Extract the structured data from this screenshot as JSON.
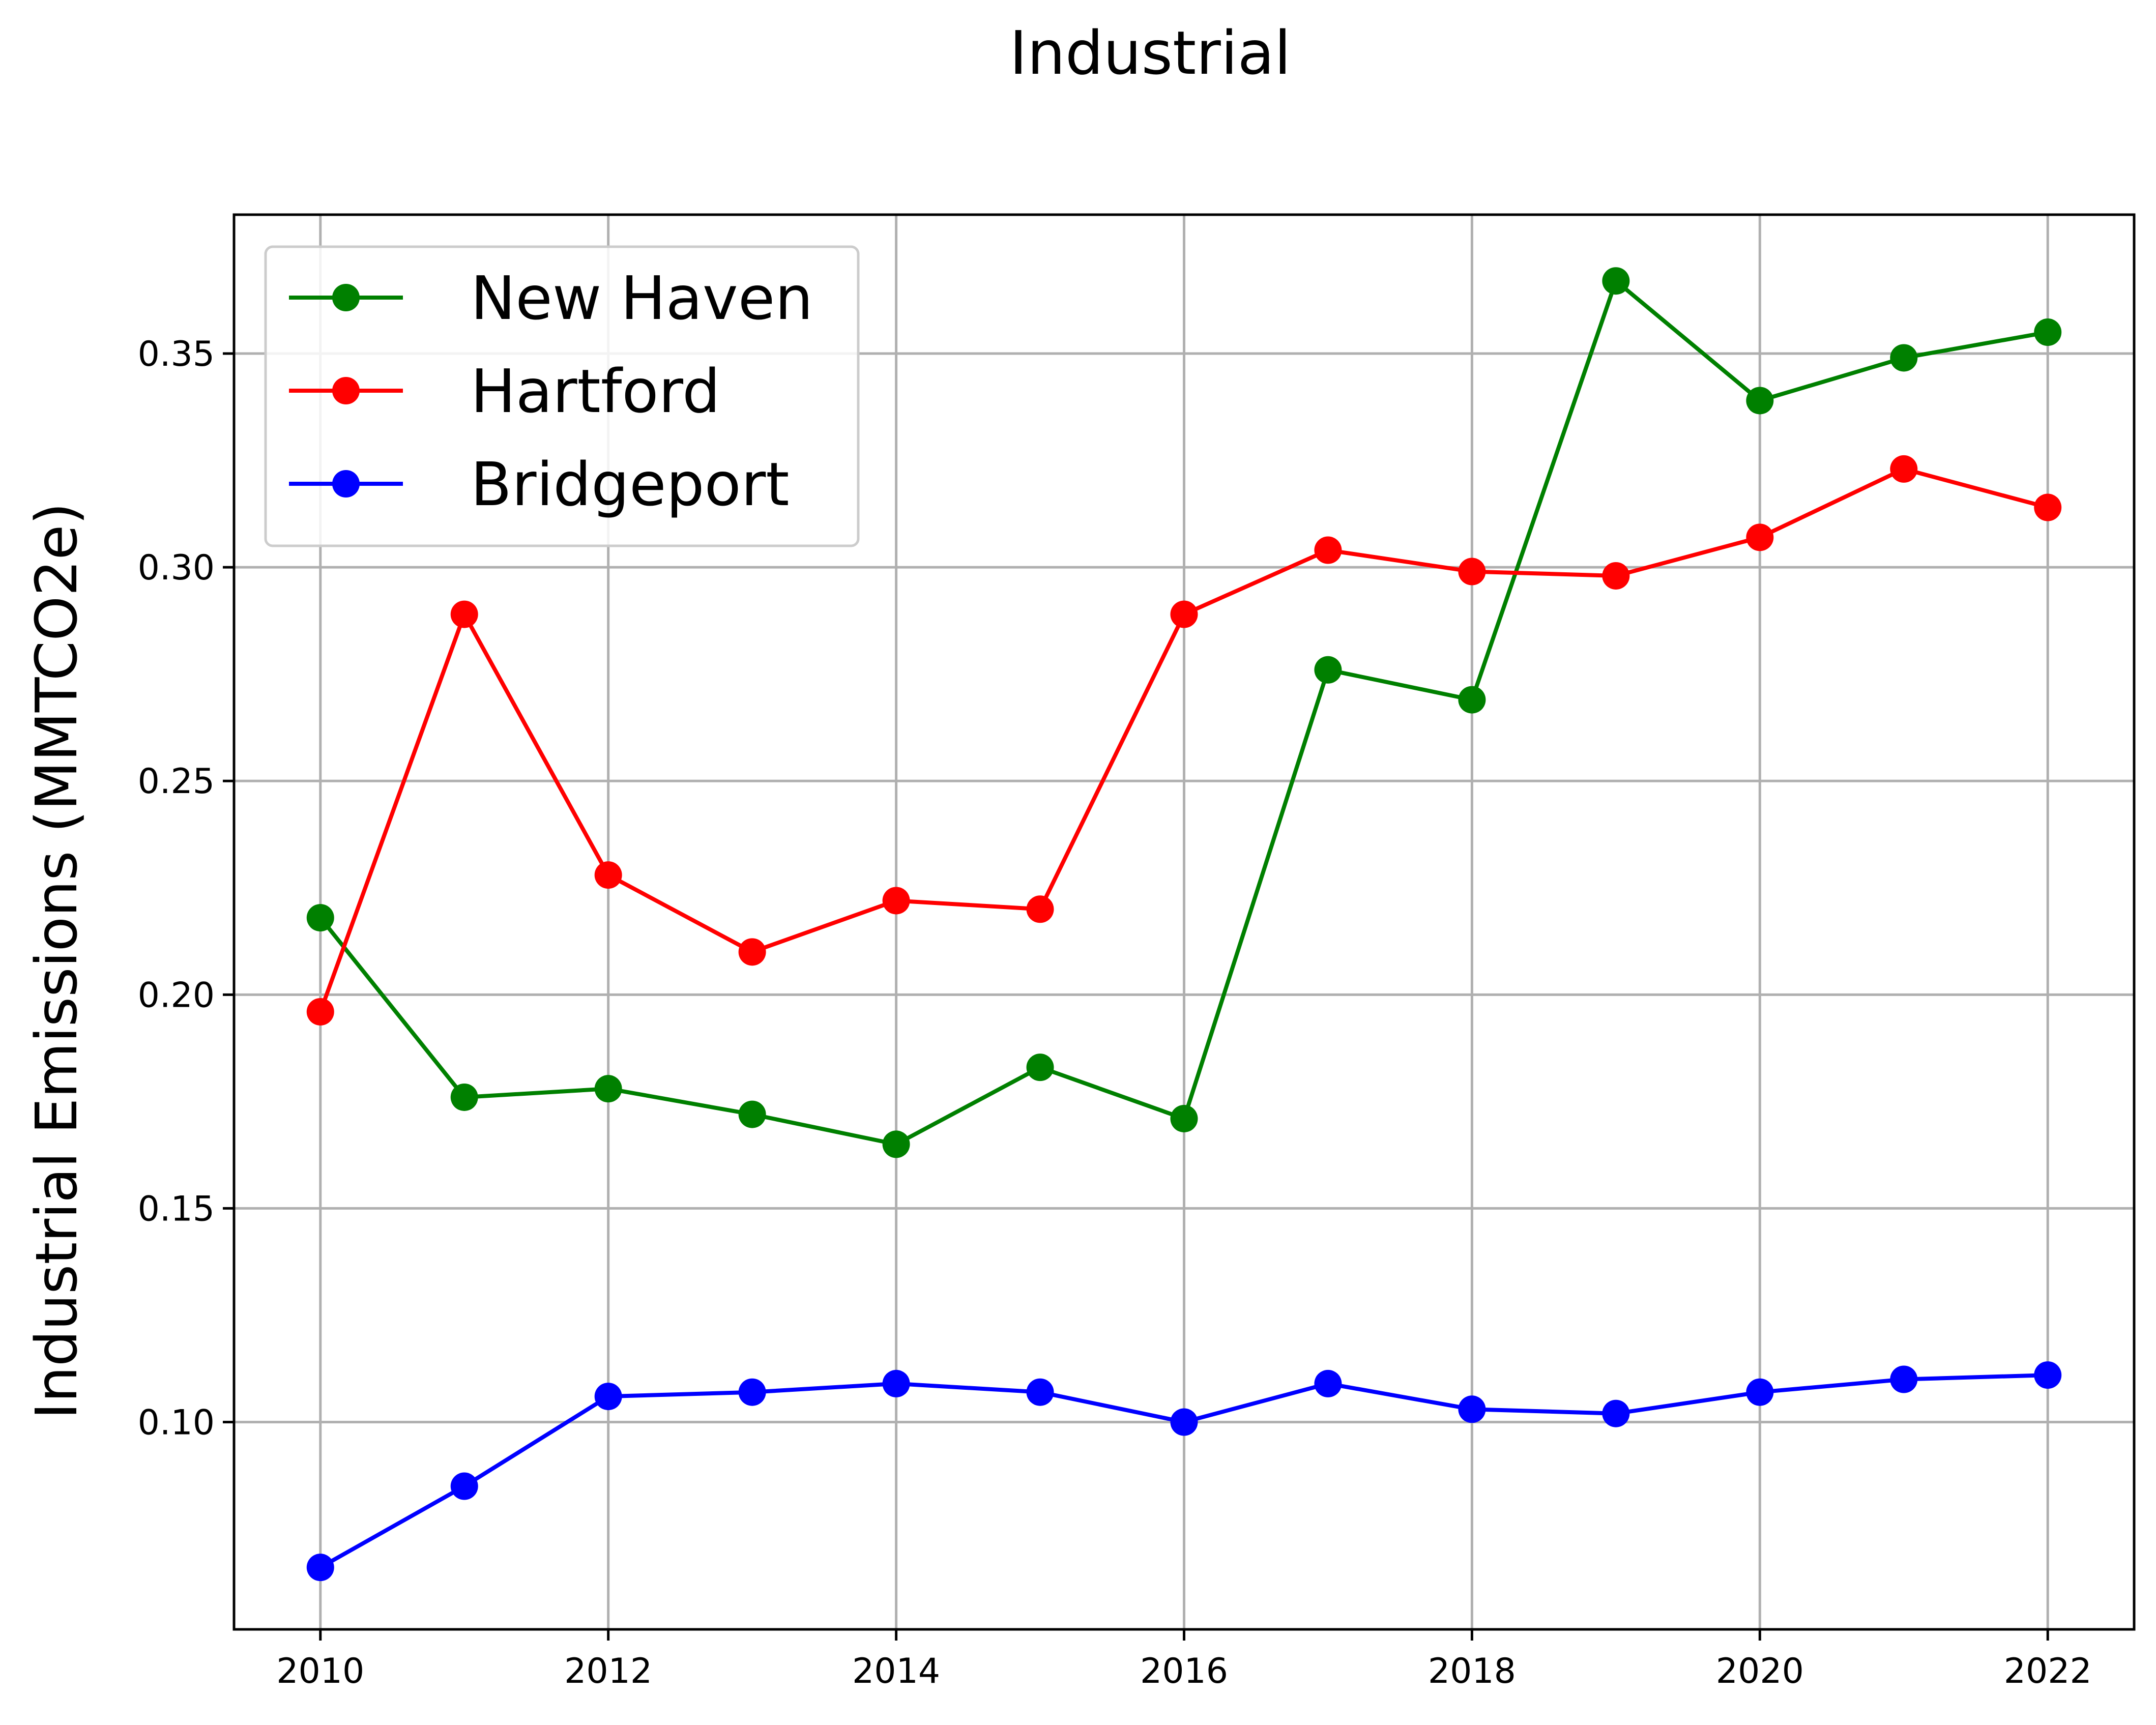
{
  "chart_data": {
    "type": "line",
    "title": "Industrial",
    "xlabel": "",
    "ylabel": "Industrial Emissions (MMTCO2e)",
    "x": [
      2010,
      2011,
      2012,
      2013,
      2014,
      2015,
      2016,
      2017,
      2018,
      2019,
      2020,
      2021,
      2022
    ],
    "xlim": [
      2009.4,
      2022.6
    ],
    "ylim": [
      0.0515,
      0.3825
    ],
    "xticks": [
      2010,
      2012,
      2014,
      2016,
      2018,
      2020,
      2022
    ],
    "xtick_labels": [
      "2010",
      "2012",
      "2014",
      "2016",
      "2018",
      "2020",
      "2022"
    ],
    "yticks": [
      0.1,
      0.15,
      0.2,
      0.25,
      0.3,
      0.35
    ],
    "ytick_labels": [
      "0.10",
      "0.15",
      "0.20",
      "0.25",
      "0.30",
      "0.35"
    ],
    "grid": true,
    "legend_position": "top-left",
    "series": [
      {
        "name": "New Haven",
        "color": "#008000",
        "marker": "circle",
        "values": [
          0.218,
          0.176,
          0.178,
          0.172,
          0.165,
          0.183,
          0.171,
          0.276,
          0.269,
          0.367,
          0.339,
          0.349,
          0.355
        ]
      },
      {
        "name": "Hartford",
        "color": "#ff0000",
        "marker": "circle",
        "values": [
          0.196,
          0.289,
          0.228,
          0.21,
          0.222,
          0.22,
          0.289,
          0.304,
          0.299,
          0.298,
          0.307,
          0.323,
          0.314
        ]
      },
      {
        "name": "Bridgeport",
        "color": "#0000ff",
        "marker": "circle",
        "values": [
          0.066,
          0.085,
          0.106,
          0.107,
          0.109,
          0.107,
          0.1,
          0.109,
          0.103,
          0.102,
          0.107,
          0.11,
          0.111
        ]
      }
    ]
  }
}
